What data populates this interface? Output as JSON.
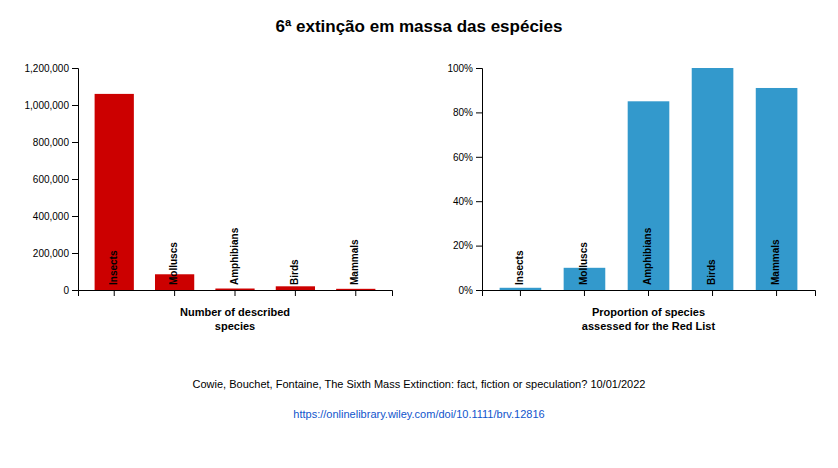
{
  "title": "6ª extinção em massa das espécies",
  "annotations": [
    {
      "text": "Cowie, Bouchet, Fontaine, The Sixth Mass Extinction: fact, fiction or speculation? 10/01/2022"
    },
    {
      "text": "https://onlinelibrary.wiley.com/doi/10.1111/brv.12816",
      "color": "#1155cc"
    }
  ],
  "chart_data": [
    {
      "type": "bar",
      "categories": [
        "Insects",
        "Molluscs",
        "Amphibians",
        "Birds",
        "Mammals"
      ],
      "values": [
        1060000,
        85000,
        8000,
        20000,
        6400
      ],
      "color": "#cc0000",
      "xlabel": "Number of described\nspecies",
      "ylim": [
        0,
        1200000
      ],
      "yticks": [
        0,
        {
          "value": 200000,
          "label": "200,000"
        },
        {
          "value": 400000,
          "label": "400,000"
        },
        {
          "value": 600000,
          "label": "600,000"
        },
        {
          "value": 800000,
          "label": "800,000"
        },
        {
          "value": 1000000,
          "label": "1,000,000"
        },
        {
          "value": 1200000,
          "label": "1,200,000"
        }
      ],
      "grid": false
    },
    {
      "type": "bar",
      "categories": [
        "Insects",
        "Molluscs",
        "Amphibians",
        "Birds",
        "Mammals"
      ],
      "values": [
        1.0,
        10.0,
        85.0,
        100.0,
        91.0
      ],
      "color": "#3399cc",
      "xlabel": "Proportion of species\nassessed for the Red List",
      "ylim": [
        0,
        100
      ],
      "yticks": [
        {
          "value": 0,
          "label": "0%"
        },
        {
          "value": 20,
          "label": "20%"
        },
        {
          "value": 40,
          "label": "40%"
        },
        {
          "value": 60,
          "label": "60%"
        },
        {
          "value": 80,
          "label": "80%"
        },
        {
          "value": 100,
          "label": "100%"
        }
      ],
      "grid": false
    }
  ]
}
